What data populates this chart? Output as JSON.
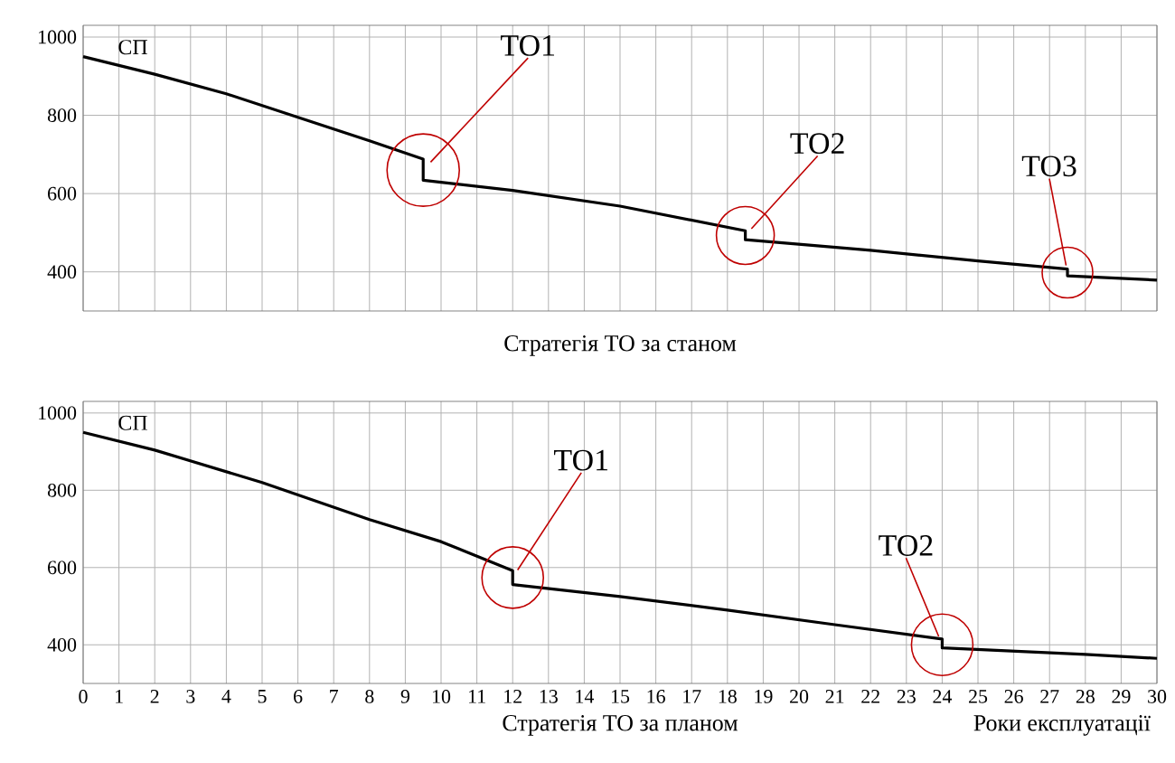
{
  "chart_data": [
    {
      "type": "line",
      "x": [
        0,
        2,
        4,
        6,
        8,
        9.5,
        9.5,
        12,
        15,
        18.5,
        18.5,
        22,
        25,
        27.5,
        27.5,
        30
      ],
      "series": [
        {
          "name": "СП",
          "color": "#000000",
          "values": [
            950,
            905,
            855,
            795,
            735,
            688,
            634,
            608,
            568,
            505,
            482,
            455,
            428,
            407,
            390,
            379
          ]
        }
      ],
      "xlim": [
        0,
        30
      ],
      "ylim": [
        300,
        1030
      ],
      "xticks": [
        0,
        1,
        2,
        3,
        4,
        5,
        6,
        7,
        8,
        9,
        10,
        11,
        12,
        13,
        14,
        15,
        16,
        17,
        18,
        19,
        20,
        21,
        22,
        23,
        24,
        25,
        26,
        27,
        28,
        29,
        30
      ],
      "yticks": [
        400,
        600,
        800,
        1000
      ],
      "tick_labels": "y",
      "grid": true,
      "annotations": [
        {
          "text": "ТО1",
          "x": 9.5,
          "y": 660
        },
        {
          "text": "ТО2",
          "x": 18.5,
          "y": 493
        },
        {
          "text": "ТО3",
          "x": 27.5,
          "y": 398
        },
        "Стратегія ТО за станом"
      ]
    },
    {
      "type": "line",
      "x": [
        0,
        2,
        5,
        8,
        10,
        12,
        12,
        15,
        18,
        21,
        24,
        24,
        28,
        30
      ],
      "series": [
        {
          "name": "СП",
          "color": "#000000",
          "values": [
            950,
            904,
            820,
            724,
            667,
            592,
            556,
            525,
            490,
            452,
            415,
            392,
            375,
            365
          ]
        }
      ],
      "xlim": [
        0,
        30
      ],
      "ylim": [
        300,
        1030
      ],
      "xticks": [
        0,
        1,
        2,
        3,
        4,
        5,
        6,
        7,
        8,
        9,
        10,
        11,
        12,
        13,
        14,
        15,
        16,
        17,
        18,
        19,
        20,
        21,
        22,
        23,
        24,
        25,
        26,
        27,
        28,
        29,
        30
      ],
      "yticks": [
        400,
        600,
        800,
        1000
      ],
      "grid": true,
      "xlabel": "Роки експлуатації",
      "annotations": [
        {
          "text": "ТО1",
          "x": 12,
          "y": 574
        },
        {
          "text": "ТО2",
          "x": 24,
          "y": 400
        },
        "Стратегія ТО за планом"
      ]
    }
  ]
}
